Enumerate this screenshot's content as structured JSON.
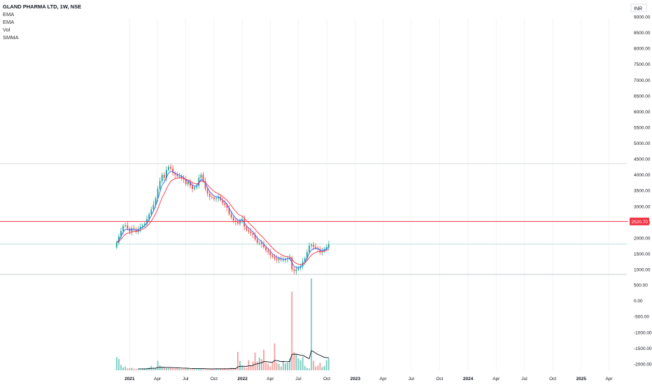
{
  "legend": {
    "title": "GLAND PHARMA LTD, 1W, NSE",
    "indicators": [
      "EMA",
      "EMA",
      "Vol",
      "SMMA"
    ]
  },
  "currency": "INR",
  "colors": {
    "up": "#26a69a",
    "down": "#ef5350",
    "up_volume": "#7fcdc3",
    "down_volume": "#f4a3a1",
    "ema_fast": "#2962ff",
    "ema_slow": "#f23645",
    "smma": "#131722",
    "price_line": "#f23645",
    "level_line": "#d0d3d8",
    "current_line": "#9fd9cf"
  },
  "chart_data": {
    "type": "candlestick",
    "title": "GLAND PHARMA LTD, 1W, NSE",
    "price_axis": {
      "ticks": [
        9000,
        8500,
        8000,
        7500,
        7000,
        6500,
        6000,
        5500,
        5000,
        4500,
        4000,
        3500,
        3000,
        2500,
        2000,
        1500,
        1000
      ],
      "labels": [
        "9000.00",
        "8500.00",
        "8000.00",
        "7500.00",
        "7000.00",
        "6500.00",
        "6000.00",
        "5500.00",
        "5000.00",
        "4500.00",
        "4000.00",
        "3500.00",
        "3000.00",
        "2500.00",
        "2000.00",
        "1500.00",
        "1000.00"
      ],
      "range": [
        850,
        9300
      ]
    },
    "volume_axis": {
      "ticks": [
        500,
        0,
        -500,
        -1000,
        -1500,
        -2000
      ],
      "labels": [
        "500.00",
        "0.00",
        "-500.00",
        "-1000.00",
        "-1500.00",
        "-2000.00"
      ],
      "range": [
        -2200,
        700
      ]
    },
    "time_axis": {
      "labels": [
        "2021",
        "Apr",
        "Jul",
        "Oct",
        "2022",
        "Apr",
        "Jul",
        "Oct",
        "2023",
        "Apr",
        "Jul",
        "Oct",
        "2024",
        "Apr",
        "Jul",
        "Oct",
        "2025",
        "Apr"
      ],
      "range": [
        "2020-11-16",
        "2025-05-15"
      ]
    },
    "series": [
      {
        "name": "Gland Pharma",
        "kind": "ohlc",
        "interval": "1W",
        "start": "2020-11-20",
        "closes": [
          1850,
          2050,
          2220,
          2380,
          2400,
          2300,
          2200,
          2300,
          2270,
          2200,
          2280,
          2350,
          2400,
          2450,
          2600,
          2750,
          2900,
          3050,
          3250,
          3550,
          3800,
          4000,
          3900,
          4150,
          4250,
          4200,
          4050,
          4000,
          3950,
          3950,
          3900,
          3850,
          3700,
          3780,
          3650,
          3550,
          3600,
          3650,
          3900,
          4000,
          3800,
          3550,
          3400,
          3300,
          3280,
          3230,
          3250,
          3300,
          3200,
          3100,
          3050,
          2950,
          2750,
          2650,
          2550,
          2500,
          2450,
          2550,
          2600,
          2350,
          2250,
          2200,
          2150,
          2100,
          1950,
          1850,
          1850,
          1800,
          1700,
          1600,
          1550,
          1450,
          1400,
          1350,
          1300,
          1350,
          1300,
          1300,
          1330,
          1350,
          1380,
          1000,
          950,
          1000,
          1050,
          1100,
          1250,
          1350,
          1550,
          1750,
          1780,
          1720,
          1680,
          1650,
          1550,
          1580,
          1650,
          1700,
          1800
        ]
      },
      {
        "name": "Volume",
        "kind": "volume",
        "values": [
          -1780,
          -1840,
          -2030,
          -2110,
          -2080,
          -2140,
          -2130,
          -2120,
          -2150,
          -2160,
          -2150,
          -2180,
          -2160,
          -2140,
          -2130,
          -2110,
          -2060,
          -2120,
          -2130,
          -1900,
          -2050,
          -2100,
          -2110,
          -2130,
          -2140,
          -2130,
          -2140,
          -2150,
          -2140,
          -2150,
          -2160,
          -2160,
          -2160,
          -2150,
          -2170,
          -2160,
          -2170,
          -2160,
          -2140,
          -2150,
          -2160,
          -2170,
          -2170,
          -2160,
          -2150,
          -2150,
          -2140,
          -2160,
          -2140,
          -2150,
          -2140,
          -2160,
          -2130,
          -2120,
          -2130,
          -2140,
          -1620,
          -1900,
          -2050,
          -2100,
          -2120,
          -1880,
          -2060,
          -1920,
          -1640,
          -1920,
          -1800,
          -1850,
          -1550,
          -1950,
          -1990,
          -2080,
          -1950,
          -1350,
          -1960,
          -2000,
          -2080,
          -1900,
          -1980,
          -1960,
          -1820,
          290,
          -1620,
          -1700,
          -1820,
          -1880,
          -1780,
          -2060,
          -2120,
          -2140,
          700,
          -1900,
          -2080,
          -2050,
          -1960,
          -2100,
          -2060,
          -1880,
          -1820
        ]
      },
      {
        "name": "EMA",
        "kind": "line",
        "values": "derived:ema_fast"
      },
      {
        "name": "EMA",
        "kind": "line",
        "values": "derived:ema_slow"
      },
      {
        "name": "SMMA",
        "kind": "line",
        "values": "derived:volume_smma"
      }
    ],
    "price_markers": [
      {
        "label": "2520.70",
        "value": 2520.7
      }
    ],
    "horizontal_levels": [
      4350,
      1800,
      850
    ],
    "grid": true,
    "legend_position": "top-left"
  }
}
